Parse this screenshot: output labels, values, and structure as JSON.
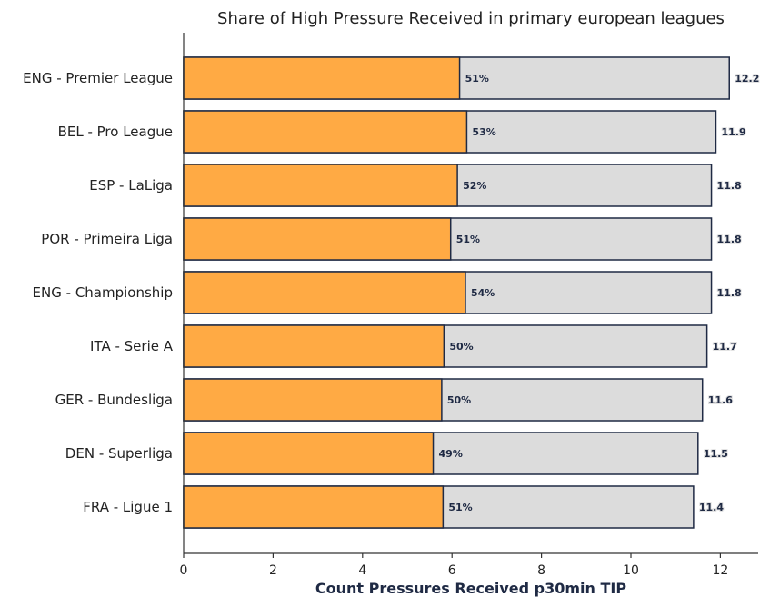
{
  "chart_data": {
    "type": "bar",
    "orientation": "horizontal",
    "stacked": true,
    "title": "Share of High Pressure Received in primary european leagues",
    "xlabel": "Count Pressures Received p30min TIP",
    "ylabel": "",
    "xlim": [
      0,
      12.8
    ],
    "xticks": [
      "0",
      "2",
      "4",
      "6",
      "8",
      "10",
      "12"
    ],
    "grid": false,
    "categories": [
      "ENG - Premier League",
      "BEL - Pro League",
      "ESP - LaLiga",
      "POR - Primeira Liga",
      "ENG - Championship",
      "ITA - Serie A",
      "GER - Bundesliga",
      "DEN - Superliga",
      "FRA - Ligue 1"
    ],
    "totals": [
      12.2,
      11.9,
      11.8,
      11.8,
      11.8,
      11.7,
      11.6,
      11.5,
      11.4
    ],
    "total_labels": [
      "12.2",
      "11.9",
      "11.8",
      "11.8",
      "11.8",
      "11.7",
      "11.6",
      "11.5",
      "11.4"
    ],
    "high_pressure_values": [
      6.17,
      6.33,
      6.12,
      5.97,
      6.3,
      5.82,
      5.77,
      5.58,
      5.8
    ],
    "share_labels": [
      "51%",
      "53%",
      "52%",
      "51%",
      "54%",
      "50%",
      "50%",
      "49%",
      "51%"
    ],
    "colors": {
      "high": "#ffaa44",
      "rest": "#dcdcdc",
      "outline": "#1f2a44",
      "axis": "#333333"
    }
  }
}
